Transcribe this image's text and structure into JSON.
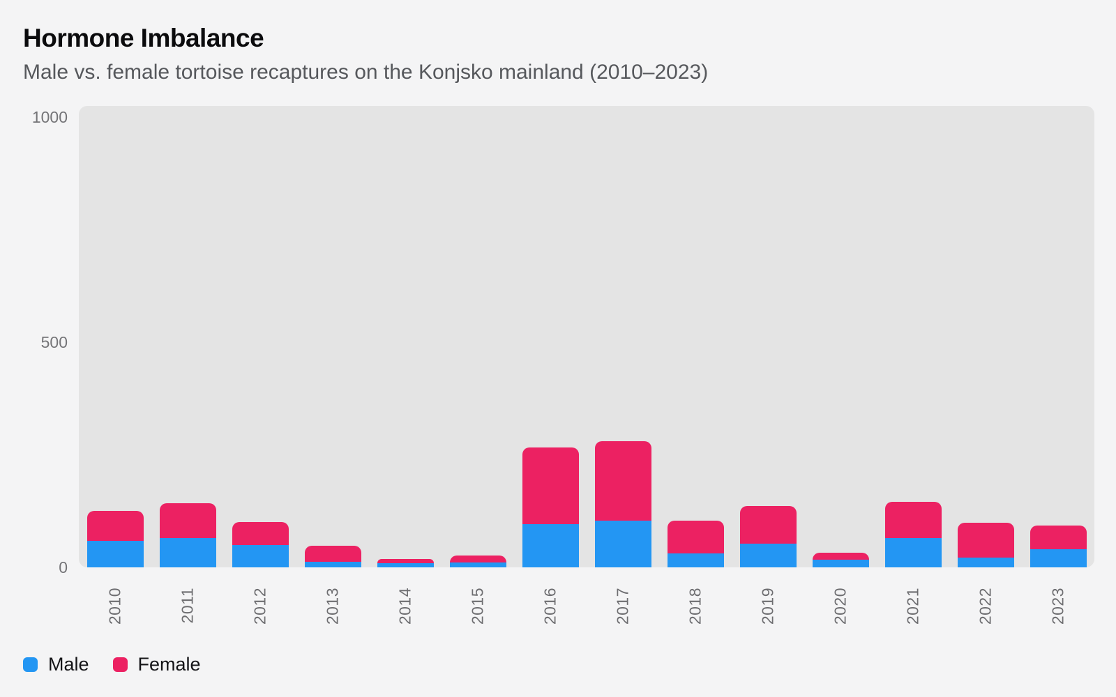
{
  "header": {
    "title": "Hormone Imbalance",
    "subtitle": "Male vs. female tortoise recaptures on the Konjsko mainland (2010–2023)"
  },
  "legend": {
    "items": [
      {
        "label": "Male",
        "color": "#2396F3"
      },
      {
        "label": "Female",
        "color": "#EC2162"
      }
    ]
  },
  "chart_data": {
    "type": "bar",
    "stacked": true,
    "title": "Hormone Imbalance",
    "subtitle": "Male vs. female tortoise recaptures on the Konjsko mainland (2010–2023)",
    "categories": [
      "2010",
      "2011",
      "2012",
      "2013",
      "2014",
      "2015",
      "2016",
      "2017",
      "2018",
      "2019",
      "2020",
      "2021",
      "2022",
      "2023"
    ],
    "series": [
      {
        "name": "Male",
        "color": "#2396F3",
        "values": [
          59,
          65,
          50,
          13,
          9,
          11,
          96,
          103,
          31,
          53,
          17,
          65,
          22,
          40
        ]
      },
      {
        "name": "Female",
        "color": "#EC2162",
        "values": [
          66,
          78,
          50,
          35,
          9,
          15,
          170,
          177,
          72,
          83,
          15,
          80,
          77,
          53
        ]
      }
    ],
    "xlabel": "",
    "ylabel": "",
    "ylim": [
      0,
      1000
    ],
    "yticks": [
      0,
      500,
      1000
    ],
    "grid": false,
    "legend_position": "bottom-left",
    "plot_background": "#E4E4E4",
    "page_background": "#F4F4F5"
  }
}
